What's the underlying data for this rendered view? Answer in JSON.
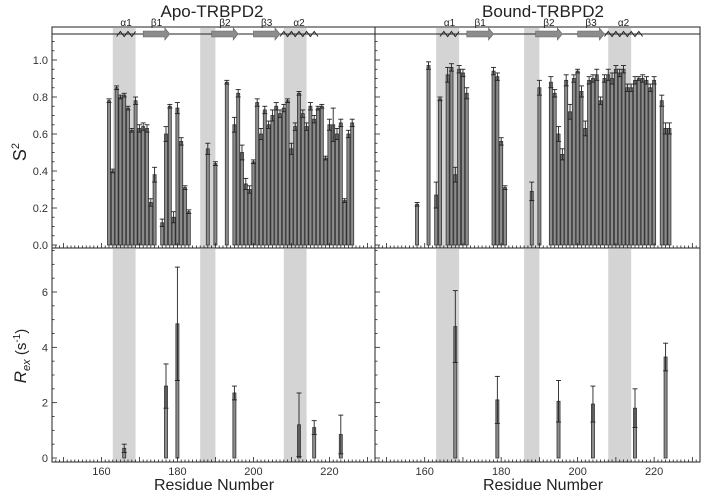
{
  "figure": {
    "titles": [
      "Apo-TRBPD2",
      "Bound-TRBPD2"
    ],
    "xlabel": "Residue Number",
    "ylabel_s2": "S",
    "ylabel_s2_sup": "2",
    "ylabel_rex_main": "R",
    "ylabel_rex_sub": "ex",
    "ylabel_rex_unit": " (s",
    "ylabel_rex_unit_sup": "-1",
    "ylabel_rex_close": ")"
  },
  "chart_data": [
    {
      "type": "bar",
      "title": "Apo-TRBPD2",
      "ylabel": "S2",
      "xlim": [
        147,
        232
      ],
      "ylim": [
        0,
        1.1
      ],
      "xticks": [
        160,
        180,
        200,
        220
      ],
      "yticks": [
        0.0,
        0.2,
        0.4,
        0.6,
        0.8,
        1.0
      ],
      "shaded_regions": [
        [
          163,
          169
        ],
        [
          186,
          190
        ],
        [
          208,
          214
        ]
      ],
      "secondary_structure": [
        {
          "label": "α1",
          "type": "helix",
          "range": [
            164,
            169
          ]
        },
        {
          "label": "β1",
          "type": "strand",
          "range": [
            171,
            178
          ]
        },
        {
          "label": "β2",
          "type": "strand",
          "range": [
            189,
            196
          ]
        },
        {
          "label": "β3",
          "type": "strand",
          "range": [
            200,
            207
          ]
        },
        {
          "label": "α2",
          "type": "helix",
          "range": [
            207,
            217
          ]
        }
      ],
      "x": [
        162,
        163,
        164,
        165,
        166,
        167,
        168,
        169,
        170,
        171,
        172,
        173,
        174,
        176,
        177,
        178,
        179,
        180,
        181,
        182,
        183,
        188,
        190,
        193,
        195,
        196,
        197,
        198,
        199,
        200,
        201,
        202,
        203,
        204,
        205,
        206,
        207,
        208,
        209,
        210,
        211,
        212,
        213,
        214,
        215,
        216,
        217,
        218,
        219,
        220,
        221,
        222,
        223,
        224,
        225,
        226
      ],
      "values": [
        0.78,
        0.4,
        0.85,
        0.8,
        0.81,
        0.74,
        0.62,
        0.78,
        0.63,
        0.64,
        0.63,
        0.23,
        0.38,
        0.12,
        0.6,
        0.75,
        0.15,
        0.74,
        0.56,
        0.31,
        0.18,
        0.52,
        0.44,
        0.88,
        0.65,
        0.82,
        0.5,
        0.33,
        0.3,
        0.45,
        0.77,
        0.6,
        0.73,
        0.65,
        0.7,
        0.75,
        0.71,
        0.74,
        0.78,
        0.52,
        0.64,
        0.82,
        0.71,
        0.64,
        0.75,
        0.68,
        0.74,
        0.75,
        0.47,
        0.65,
        0.65,
        0.6,
        0.66,
        0.24,
        0.6,
        0.66
      ],
      "errors": [
        0.01,
        0.01,
        0.01,
        0.01,
        0.01,
        0.01,
        0.01,
        0.02,
        0.02,
        0.02,
        0.02,
        0.02,
        0.04,
        0.02,
        0.04,
        0.01,
        0.03,
        0.03,
        0.02,
        0.01,
        0.01,
        0.03,
        0.01,
        0.01,
        0.04,
        0.02,
        0.04,
        0.03,
        0.02,
        0.01,
        0.02,
        0.03,
        0.02,
        0.02,
        0.03,
        0.02,
        0.02,
        0.02,
        0.01,
        0.03,
        0.02,
        0.01,
        0.02,
        0.02,
        0.02,
        0.02,
        0.01,
        0.01,
        0.01,
        0.03,
        0.09,
        0.03,
        0.02,
        0.01,
        0.02,
        0.02
      ]
    },
    {
      "type": "bar",
      "title": "Bound-TRBPD2",
      "ylabel": "S2",
      "xlim": [
        147,
        232
      ],
      "ylim": [
        0,
        1.1
      ],
      "xticks": [
        160,
        180,
        200,
        220
      ],
      "yticks": [
        0.0,
        0.2,
        0.4,
        0.6,
        0.8,
        1.0
      ],
      "shaded_regions": [
        [
          163,
          169
        ],
        [
          186,
          190
        ],
        [
          208,
          214
        ]
      ],
      "secondary_structure": [
        {
          "label": "α1",
          "type": "helix",
          "range": [
            164,
            169
          ]
        },
        {
          "label": "β1",
          "type": "strand",
          "range": [
            171,
            178
          ]
        },
        {
          "label": "β2",
          "type": "strand",
          "range": [
            189,
            196
          ]
        },
        {
          "label": "β3",
          "type": "strand",
          "range": [
            200,
            207
          ]
        },
        {
          "label": "α2",
          "type": "helix",
          "range": [
            207,
            217
          ]
        }
      ],
      "x": [
        158,
        161,
        163,
        164,
        166,
        167,
        168,
        169,
        170,
        171,
        178,
        179,
        180,
        181,
        188,
        190,
        193,
        194,
        195,
        196,
        197,
        198,
        199,
        200,
        201,
        202,
        203,
        204,
        205,
        206,
        207,
        208,
        209,
        210,
        211,
        212,
        213,
        214,
        215,
        216,
        217,
        218,
        219,
        220,
        222,
        223,
        224
      ],
      "values": [
        0.22,
        0.97,
        0.27,
        0.79,
        0.92,
        0.96,
        0.38,
        0.95,
        0.93,
        0.82,
        0.94,
        0.91,
        0.56,
        0.31,
        0.29,
        0.85,
        0.88,
        0.82,
        0.6,
        0.49,
        0.89,
        0.72,
        0.9,
        0.94,
        0.83,
        0.63,
        0.89,
        0.9,
        0.92,
        0.78,
        0.9,
        0.92,
        0.9,
        0.95,
        0.93,
        0.95,
        0.85,
        0.85,
        0.89,
        0.9,
        0.9,
        0.89,
        0.85,
        0.89,
        0.78,
        0.63,
        0.63
      ],
      "errors": [
        0.01,
        0.02,
        0.07,
        0.01,
        0.04,
        0.02,
        0.04,
        0.02,
        0.02,
        0.03,
        0.02,
        0.02,
        0.02,
        0.01,
        0.05,
        0.04,
        0.03,
        0.02,
        0.04,
        0.03,
        0.03,
        0.04,
        0.02,
        0.01,
        0.03,
        0.04,
        0.02,
        0.02,
        0.03,
        0.02,
        0.02,
        0.03,
        0.03,
        0.02,
        0.02,
        0.02,
        0.02,
        0.02,
        0.02,
        0.01,
        0.02,
        0.02,
        0.02,
        0.02,
        0.03,
        0.03,
        0.03
      ]
    },
    {
      "type": "bar",
      "title": "Apo-TRBPD2",
      "ylabel": "Rex (s-1)",
      "xlabel": "Residue Number",
      "xlim": [
        147,
        232
      ],
      "ylim": [
        0,
        7.8
      ],
      "xticks": [
        160,
        180,
        200,
        220
      ],
      "yticks": [
        0,
        2,
        4,
        6
      ],
      "shaded_regions": [
        [
          163,
          169
        ],
        [
          186,
          190
        ],
        [
          208,
          214
        ]
      ],
      "x": [
        166,
        177,
        180,
        195,
        212,
        216,
        223
      ],
      "values": [
        0.35,
        2.6,
        4.85,
        2.35,
        1.2,
        1.1,
        0.85
      ],
      "errors": [
        0.15,
        0.8,
        2.05,
        0.25,
        1.15,
        0.25,
        0.7
      ]
    },
    {
      "type": "bar",
      "title": "Bound-TRBPD2",
      "ylabel": "Rex (s-1)",
      "xlabel": "Residue Number",
      "xlim": [
        147,
        232
      ],
      "ylim": [
        0,
        7.8
      ],
      "xticks": [
        160,
        180,
        200,
        220
      ],
      "yticks": [
        0,
        2,
        4,
        6
      ],
      "shaded_regions": [
        [
          163,
          169
        ],
        [
          186,
          190
        ],
        [
          208,
          214
        ]
      ],
      "x": [
        168,
        179,
        195,
        204,
        215,
        223
      ],
      "values": [
        4.75,
        2.1,
        2.05,
        1.95,
        1.8,
        3.65
      ],
      "errors": [
        1.3,
        0.85,
        0.75,
        0.65,
        0.7,
        0.5
      ]
    }
  ]
}
